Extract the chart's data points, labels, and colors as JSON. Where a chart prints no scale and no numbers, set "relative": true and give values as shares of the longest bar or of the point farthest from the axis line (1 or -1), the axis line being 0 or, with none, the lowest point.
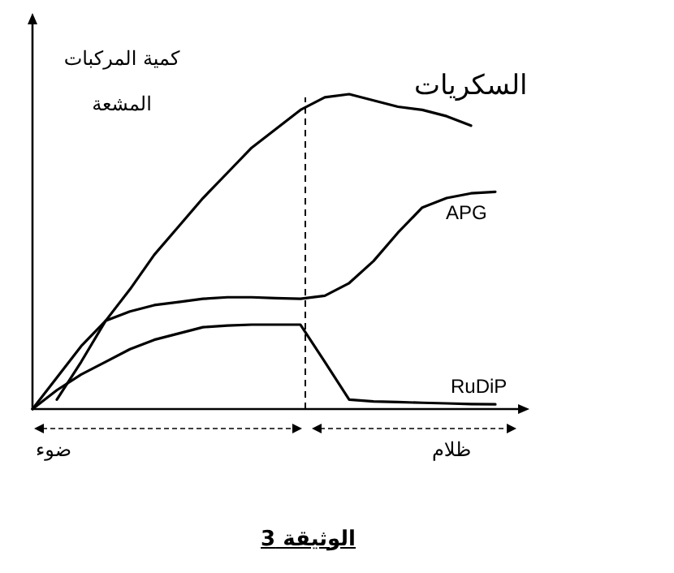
{
  "chart_data": {
    "type": "line",
    "title": "الوثيقة 3",
    "ylabel": "كمية المركبات المشعة",
    "relative": true,
    "marker": "none",
    "line_style": "solid",
    "categories": [
      null,
      null,
      null,
      null,
      null,
      null,
      null,
      null,
      null,
      null,
      null,
      null,
      null,
      null,
      null,
      null,
      null,
      null,
      null,
      null
    ],
    "series": [
      {
        "name": "السكريات",
        "color": "#000000",
        "values": [
          null,
          0.03,
          0.15,
          0.28,
          0.38,
          0.49,
          0.58,
          0.67,
          0.75,
          0.83,
          0.89,
          0.95,
          0.99,
          1.0,
          0.98,
          0.96,
          0.95,
          0.93,
          0.9,
          null
        ]
      },
      {
        "name": "APG",
        "color": "#000000",
        "values": [
          0,
          0.1,
          0.2,
          0.28,
          0.31,
          0.33,
          0.34,
          0.35,
          0.355,
          0.355,
          0.352,
          0.35,
          0.36,
          0.4,
          0.47,
          0.56,
          0.64,
          0.67,
          0.685,
          0.69
        ]
      },
      {
        "name": "RuDiP",
        "color": "#000000",
        "values": [
          0,
          0.06,
          0.11,
          0.15,
          0.19,
          0.22,
          0.24,
          0.26,
          0.265,
          0.268,
          0.268,
          0.268,
          0.15,
          0.03,
          0.024,
          0.022,
          0.02,
          0.018,
          0.016,
          0.015
        ]
      }
    ],
    "annotations": [
      "ضوء",
      "ظلام"
    ]
  }
}
